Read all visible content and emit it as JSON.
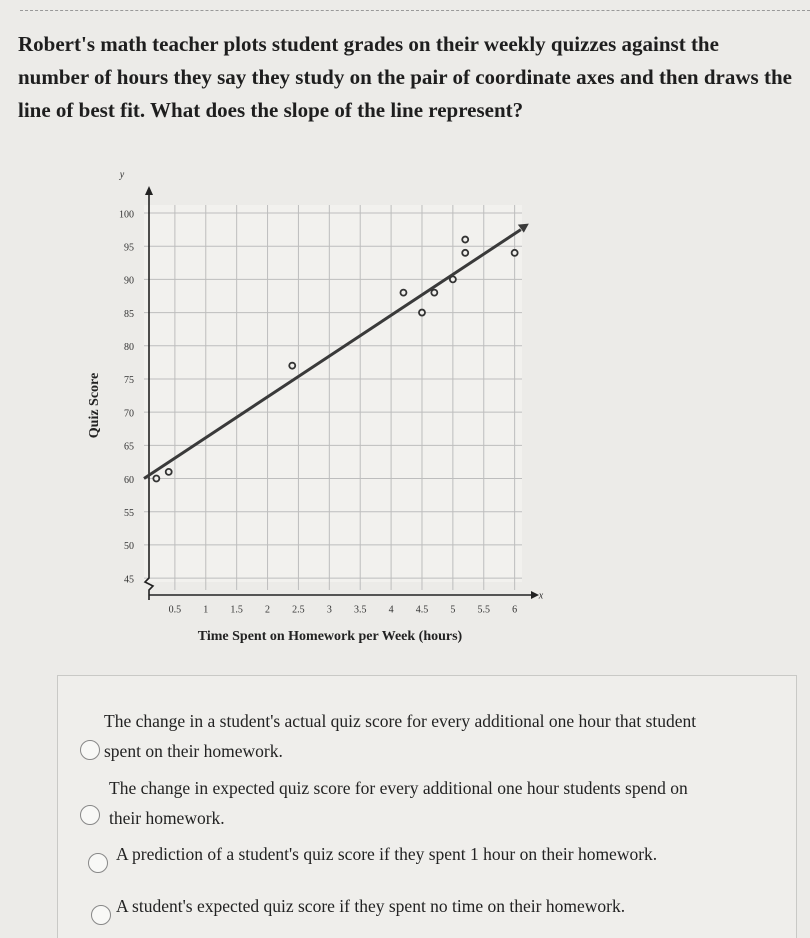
{
  "question": "Robert's math teacher plots student grades on their weekly quizzes against the number of hours they say they study on the pair of coordinate axes and then draws the line of best fit. What does the slope of the line represent?",
  "chart_data": {
    "type": "scatter",
    "x_axis_letter": "x",
    "y_axis_letter": "y",
    "xlabel": "Time Spent on Homework per Week (hours)",
    "ylabel": "Quiz Score",
    "x": [
      0.2,
      0.4,
      2.4,
      4.2,
      4.5,
      4.7,
      5,
      5.2,
      5.2,
      6
    ],
    "values": [
      60,
      61,
      77,
      88,
      85,
      88,
      90,
      96,
      94,
      94
    ],
    "fit_line": {
      "x": [
        0,
        6.1
      ],
      "values": [
        60,
        97.5
      ]
    },
    "color": "#333333",
    "xlim": [
      0,
      6.2
    ],
    "ylim": [
      42,
      100
    ],
    "xticks": [
      0.5,
      1,
      1.5,
      2,
      2.5,
      3,
      3.5,
      4,
      4.5,
      5,
      5.5,
      6
    ],
    "yticks": [
      45,
      50,
      55,
      60,
      65,
      70,
      75,
      80,
      85,
      90,
      95,
      100
    ],
    "grid": true
  },
  "options": [
    "The change in a student's actual quiz score for every additional one hour that student spent on their homework.",
    "The change in expected quiz score for every additional one hour students spend on their homework.",
    "A prediction of a student's quiz score if they spent 1 hour on their homework.",
    "A student's expected quiz score if they spent no time on their homework."
  ]
}
